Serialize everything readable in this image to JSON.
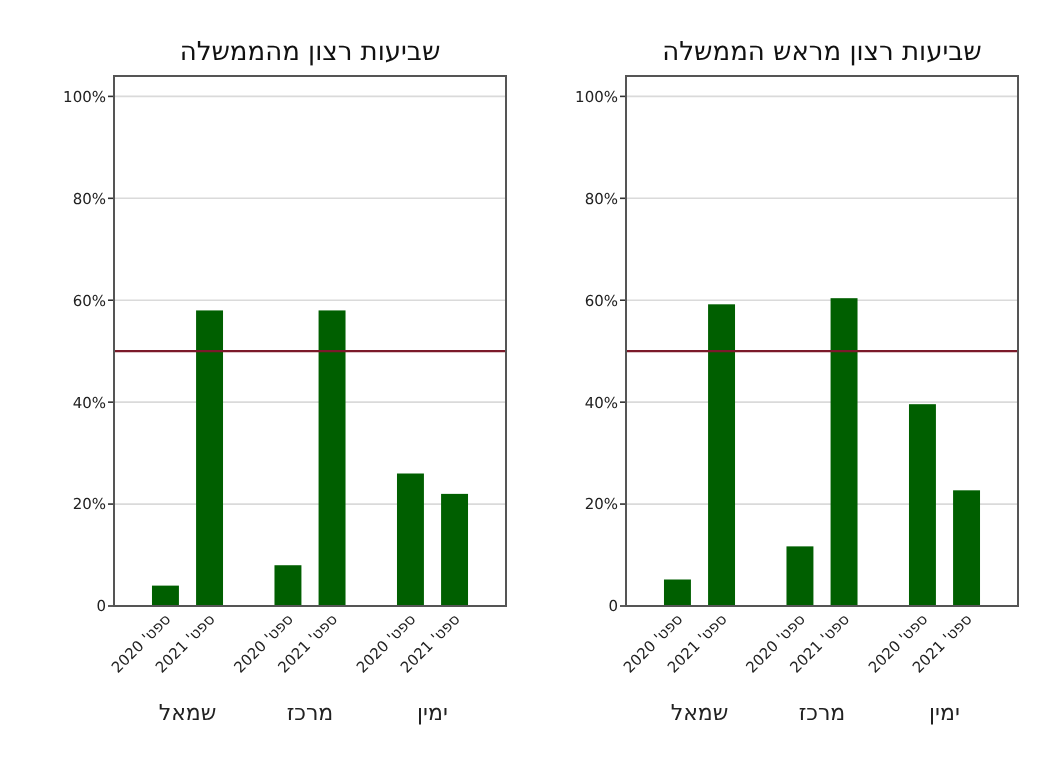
{
  "chart_data": [
    {
      "type": "bar",
      "title": "שביעות רצון מהממשלה",
      "categories": [
        "שמאל",
        "מרכז",
        "ימין"
      ],
      "series": [
        {
          "name": "ספט' 2020",
          "color": "#005f00",
          "values": [
            4,
            8,
            26
          ]
        },
        {
          "name": "ספט' 2021",
          "color": "#005f00",
          "values": [
            58,
            58,
            22
          ]
        }
      ],
      "ylim": [
        0,
        104
      ],
      "yticks": [
        {
          "value": 0,
          "label": "0"
        },
        {
          "value": 20,
          "label": "20%"
        },
        {
          "value": 40,
          "label": "40%"
        },
        {
          "value": 60,
          "label": "60%"
        },
        {
          "value": 80,
          "label": "80%"
        },
        {
          "value": 100,
          "label": "100%"
        }
      ],
      "grid": "y",
      "ref_lines": [
        {
          "axis": "y",
          "value": 50,
          "color": "#7b1a2a"
        }
      ]
    },
    {
      "type": "bar",
      "title": "שביעות רצון מראש הממשלה",
      "categories": [
        "שמאל",
        "מרכז",
        "ימין"
      ],
      "series": [
        {
          "name": "ספט' 2020",
          "color": "#005f00",
          "values": [
            5.2,
            11.7,
            39.6
          ]
        },
        {
          "name": "ספט' 2021",
          "color": "#005f00",
          "values": [
            59.2,
            60.4,
            22.7
          ]
        }
      ],
      "ylim": [
        0,
        104
      ],
      "yticks": [
        {
          "value": 0,
          "label": "0"
        },
        {
          "value": 20,
          "label": "20%"
        },
        {
          "value": 40,
          "label": "40%"
        },
        {
          "value": 60,
          "label": "60%"
        },
        {
          "value": 80,
          "label": "80%"
        },
        {
          "value": 100,
          "label": "100%"
        }
      ],
      "grid": "y",
      "ref_lines": [
        {
          "axis": "y",
          "value": 50,
          "color": "#7b1a2a"
        }
      ]
    }
  ]
}
